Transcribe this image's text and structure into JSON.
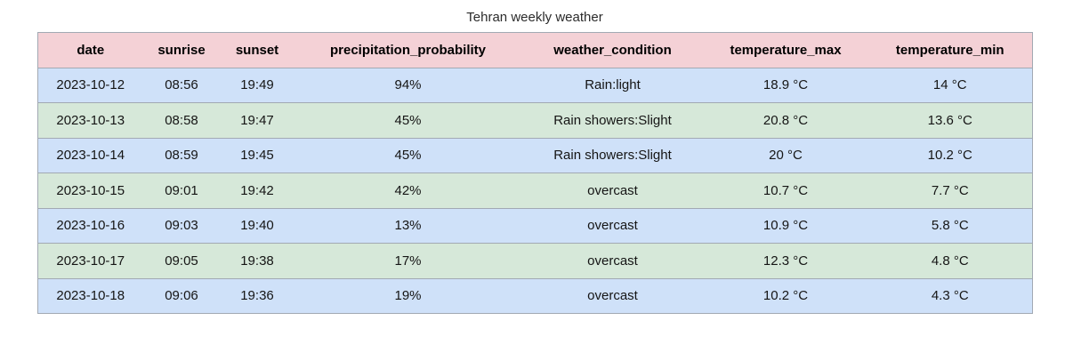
{
  "title": "Tehran weekly weather",
  "chart_data": {
    "type": "table",
    "title": "Tehran weekly weather",
    "columns": [
      "date",
      "sunrise",
      "sunset",
      "precipitation_probability",
      "weather_condition",
      "temperature_max",
      "temperature_min"
    ],
    "rows": [
      [
        "2023-10-12",
        "08:56",
        "19:49",
        "94%",
        "Rain:light",
        "18.9 °C",
        "14 °C"
      ],
      [
        "2023-10-13",
        "08:58",
        "19:47",
        "45%",
        "Rain showers:Slight",
        "20.8 °C",
        "13.6 °C"
      ],
      [
        "2023-10-14",
        "08:59",
        "19:45",
        "45%",
        "Rain showers:Slight",
        "20 °C",
        "10.2 °C"
      ],
      [
        "2023-10-15",
        "09:01",
        "19:42",
        "42%",
        "overcast",
        "10.7 °C",
        "7.7 °C"
      ],
      [
        "2023-10-16",
        "09:03",
        "19:40",
        "13%",
        "overcast",
        "10.9 °C",
        "5.8 °C"
      ],
      [
        "2023-10-17",
        "09:05",
        "19:38",
        "17%",
        "overcast",
        "12.3 °C",
        "4.8 °C"
      ],
      [
        "2023-10-18",
        "09:06",
        "19:36",
        "19%",
        "overcast",
        "10.2 °C",
        "4.3 °C"
      ]
    ],
    "style": {
      "header_bg": "#f4d1d6",
      "row_alt_bg_1": "#cfe1f9",
      "row_alt_bg_2": "#d6e8d9",
      "border_color": "#a2a9b3",
      "text_color": "#151515",
      "title_color": "#2b2b2b",
      "background": "#ffffff"
    }
  }
}
